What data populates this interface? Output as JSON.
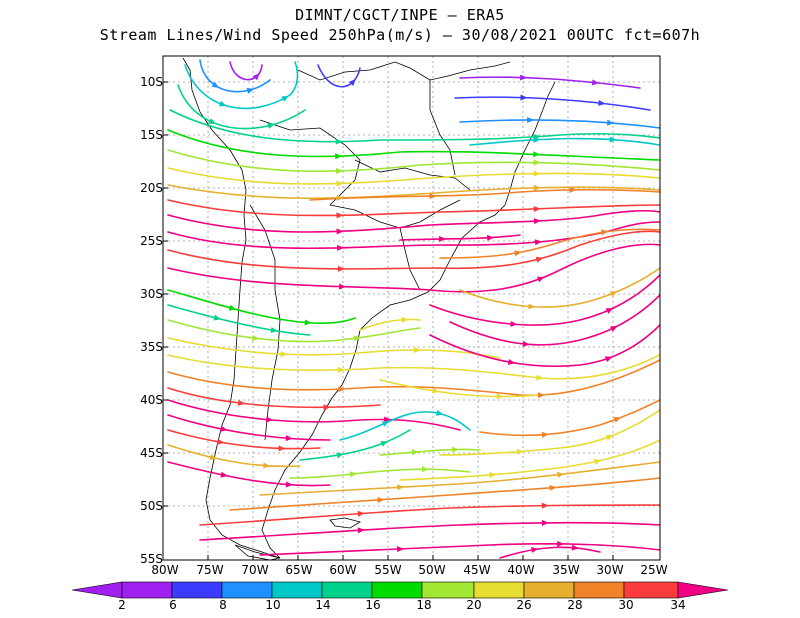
{
  "title": {
    "line1": "DIMNT/CGCT/INPE  –  ERA5",
    "line2": "Stream Lines/Wind Speed 250hPa(m/s)  –  30/08/2021 00UTC fct=607h"
  },
  "map": {
    "lat_labels": [
      "10S",
      "15S",
      "20S",
      "25S",
      "30S",
      "35S",
      "40S",
      "45S",
      "50S",
      "55S"
    ],
    "lon_labels": [
      "80W",
      "75W",
      "70W",
      "65W",
      "60W",
      "55W",
      "50W",
      "45W",
      "40W",
      "35W",
      "30W",
      "25W"
    ]
  },
  "colorbar": {
    "labels": [
      "2",
      "6",
      "8",
      "10",
      "14",
      "16",
      "18",
      "20",
      "26",
      "28",
      "30",
      "34"
    ],
    "colors": [
      "#a020f0",
      "#3c3cff",
      "#1e90ff",
      "#00c8c8",
      "#00d28c",
      "#00dc00",
      "#a0e632",
      "#e6dc32",
      "#e6af2d",
      "#f08228",
      "#fa3c3c",
      "#f00082"
    ]
  }
}
